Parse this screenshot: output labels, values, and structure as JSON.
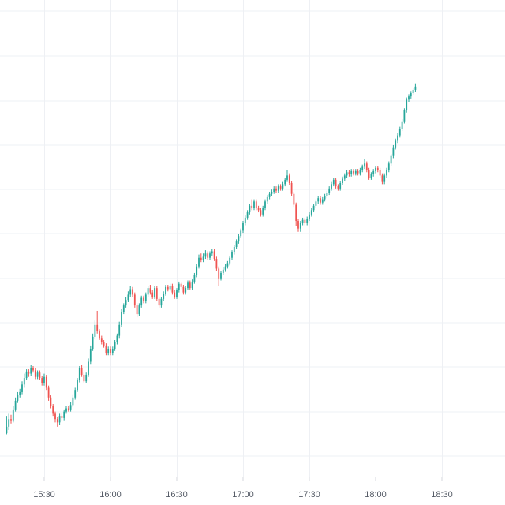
{
  "colors": {
    "background": "#ffffff",
    "grid": "#eef0f4",
    "axis_line": "#d4d7dd",
    "up": "#26a69a",
    "down": "#ef5350",
    "tick_text": "#555b66"
  },
  "chart_data": {
    "type": "candlestick",
    "interval_minutes": 1,
    "grid": true,
    "y_axis_labels_visible": false,
    "x_tick_labels": [
      "15:30",
      "16:00",
      "16:30",
      "17:00",
      "17:30",
      "18:00",
      "18:30"
    ],
    "series": [
      {
        "start_time": "15:13",
        "candles": [
          [
            96.0,
            96.6,
            97.6,
            95.9
          ],
          [
            96.6,
            97.3,
            97.8,
            96.3
          ],
          [
            97.3,
            97.2,
            97.7,
            96.9
          ],
          [
            97.2,
            98.2,
            98.5,
            97.0
          ],
          [
            98.2,
            99.0,
            99.3,
            98.0
          ],
          [
            99.0,
            99.5,
            99.8,
            98.8
          ],
          [
            99.5,
            99.8,
            100.1,
            99.3
          ],
          [
            99.8,
            100.5,
            100.8,
            99.6
          ],
          [
            100.5,
            101.1,
            101.5,
            100.2
          ],
          [
            101.1,
            101.7,
            101.9,
            100.9
          ],
          [
            101.7,
            101.5,
            101.9,
            101.2
          ],
          [
            101.5,
            102.0,
            102.3,
            101.3
          ],
          [
            102.0,
            101.8,
            102.2,
            101.6
          ],
          [
            101.8,
            101.2,
            102.0,
            101.0
          ],
          [
            101.2,
            101.6,
            101.8,
            101.0
          ],
          [
            101.6,
            101.1,
            101.8,
            100.9
          ],
          [
            101.1,
            100.6,
            101.3,
            100.4
          ],
          [
            100.6,
            101.2,
            101.5,
            100.4
          ],
          [
            101.2,
            100.2,
            101.4,
            100.0
          ],
          [
            100.2,
            99.3,
            100.4,
            99.0
          ],
          [
            99.3,
            98.5,
            99.5,
            98.3
          ],
          [
            98.5,
            97.8,
            98.7,
            97.6
          ],
          [
            97.8,
            97.3,
            98.0,
            97.0
          ],
          [
            97.3,
            97.0,
            97.5,
            96.6
          ],
          [
            97.0,
            97.6,
            97.8,
            96.8
          ],
          [
            97.6,
            97.4,
            97.9,
            97.2
          ],
          [
            97.4,
            98.0,
            98.2,
            97.2
          ],
          [
            98.0,
            98.3,
            98.5,
            97.8
          ],
          [
            98.3,
            98.2,
            98.5,
            98.0
          ],
          [
            98.2,
            98.6,
            98.9,
            98.0
          ],
          [
            98.6,
            99.3,
            99.6,
            98.4
          ],
          [
            99.3,
            100.0,
            100.2,
            99.1
          ],
          [
            100.0,
            100.9,
            101.1,
            99.8
          ],
          [
            100.9,
            102.0,
            102.2,
            100.7
          ],
          [
            102.0,
            101.4,
            102.3,
            101.2
          ],
          [
            101.4,
            100.8,
            101.6,
            100.6
          ],
          [
            100.8,
            101.4,
            101.6,
            100.6
          ],
          [
            101.4,
            102.6,
            102.9,
            101.2
          ],
          [
            102.6,
            103.8,
            104.1,
            102.4
          ],
          [
            103.8,
            104.9,
            105.2,
            103.6
          ],
          [
            104.9,
            106.0,
            106.4,
            104.7
          ],
          [
            106.0,
            105.4,
            107.3,
            105.2
          ],
          [
            105.4,
            104.8,
            105.6,
            104.6
          ],
          [
            104.8,
            104.4,
            105.0,
            104.2
          ],
          [
            104.4,
            104.1,
            104.6,
            103.9
          ],
          [
            104.1,
            103.4,
            104.3,
            103.2
          ],
          [
            103.4,
            103.8,
            104.0,
            103.2
          ],
          [
            103.8,
            103.4,
            104.0,
            103.2
          ],
          [
            103.4,
            103.8,
            104.0,
            103.2
          ],
          [
            103.8,
            104.4,
            104.6,
            103.6
          ],
          [
            104.4,
            105.0,
            105.2,
            104.2
          ],
          [
            105.0,
            106.0,
            106.3,
            104.8
          ],
          [
            106.0,
            107.2,
            107.5,
            105.8
          ],
          [
            107.2,
            107.8,
            108.0,
            107.0
          ],
          [
            107.8,
            108.3,
            108.6,
            107.6
          ],
          [
            108.3,
            108.8,
            109.1,
            108.1
          ],
          [
            108.8,
            109.3,
            109.6,
            108.6
          ],
          [
            109.3,
            108.8,
            109.5,
            108.6
          ],
          [
            108.8,
            107.8,
            109.0,
            107.6
          ],
          [
            107.8,
            107.0,
            108.0,
            106.7
          ],
          [
            107.0,
            107.8,
            108.0,
            106.8
          ],
          [
            107.8,
            108.5,
            108.7,
            107.6
          ],
          [
            108.5,
            108.2,
            108.7,
            108.0
          ],
          [
            108.2,
            108.8,
            109.0,
            108.0
          ],
          [
            108.8,
            109.4,
            109.6,
            108.6
          ],
          [
            109.4,
            109.0,
            109.7,
            108.8
          ],
          [
            109.0,
            108.6,
            109.2,
            108.4
          ],
          [
            108.6,
            109.4,
            109.6,
            108.4
          ],
          [
            109.4,
            108.4,
            109.6,
            108.2
          ],
          [
            108.4,
            107.8,
            108.6,
            107.6
          ],
          [
            107.8,
            108.4,
            108.6,
            107.6
          ],
          [
            108.4,
            108.9,
            109.1,
            108.2
          ],
          [
            108.9,
            109.5,
            109.7,
            108.7
          ],
          [
            109.5,
            109.3,
            109.7,
            109.1
          ],
          [
            109.3,
            109.6,
            109.8,
            109.1
          ],
          [
            109.6,
            109.0,
            109.8,
            108.8
          ],
          [
            109.0,
            108.6,
            109.2,
            108.4
          ],
          [
            108.6,
            109.2,
            109.4,
            108.4
          ],
          [
            109.2,
            109.8,
            110.0,
            109.0
          ],
          [
            109.8,
            109.5,
            110.0,
            109.3
          ],
          [
            109.5,
            109.0,
            109.7,
            108.8
          ],
          [
            109.0,
            109.4,
            109.6,
            108.8
          ],
          [
            109.4,
            109.9,
            110.1,
            109.2
          ],
          [
            109.9,
            109.4,
            110.1,
            109.2
          ],
          [
            109.4,
            110.0,
            110.2,
            109.2
          ],
          [
            110.0,
            110.6,
            110.8,
            109.8
          ],
          [
            110.6,
            111.4,
            111.6,
            110.4
          ],
          [
            111.4,
            112.2,
            112.5,
            111.2
          ],
          [
            112.2,
            112.0,
            112.6,
            111.8
          ],
          [
            112.0,
            112.3,
            112.6,
            111.8
          ],
          [
            112.3,
            112.6,
            112.9,
            112.1
          ],
          [
            112.6,
            112.2,
            112.8,
            112.0
          ],
          [
            112.2,
            112.6,
            112.8,
            112.0
          ],
          [
            112.6,
            112.8,
            113.0,
            112.4
          ],
          [
            112.8,
            112.1,
            113.0,
            111.9
          ],
          [
            112.1,
            111.2,
            112.3,
            111.0
          ],
          [
            111.2,
            110.3,
            111.4,
            109.6
          ],
          [
            110.3,
            110.8,
            111.0,
            110.1
          ],
          [
            110.8,
            111.1,
            111.3,
            110.6
          ],
          [
            111.1,
            111.4,
            111.6,
            110.9
          ],
          [
            111.4,
            111.7,
            111.9,
            111.2
          ],
          [
            111.7,
            112.2,
            112.4,
            111.5
          ],
          [
            112.2,
            112.7,
            112.9,
            112.0
          ],
          [
            112.7,
            113.2,
            113.4,
            112.5
          ],
          [
            113.2,
            113.7,
            113.9,
            113.0
          ],
          [
            113.7,
            114.2,
            114.4,
            113.5
          ],
          [
            114.2,
            114.7,
            114.9,
            114.0
          ],
          [
            114.7,
            115.4,
            115.6,
            114.5
          ],
          [
            115.4,
            115.9,
            116.1,
            115.2
          ],
          [
            115.9,
            116.4,
            116.6,
            115.7
          ],
          [
            116.4,
            117.0,
            117.2,
            116.2
          ],
          [
            117.0,
            116.8,
            117.6,
            116.6
          ],
          [
            116.8,
            117.4,
            117.6,
            116.6
          ],
          [
            117.4,
            116.8,
            117.6,
            116.6
          ],
          [
            116.8,
            116.6,
            117.0,
            116.4
          ],
          [
            116.6,
            116.2,
            116.8,
            116.0
          ],
          [
            116.2,
            116.8,
            117.0,
            116.0
          ],
          [
            116.8,
            117.4,
            117.6,
            116.6
          ],
          [
            117.4,
            117.8,
            118.0,
            117.2
          ],
          [
            117.8,
            118.1,
            118.3,
            117.6
          ],
          [
            118.1,
            118.3,
            118.5,
            117.9
          ],
          [
            118.3,
            118.6,
            118.8,
            118.1
          ],
          [
            118.6,
            118.4,
            118.8,
            118.2
          ],
          [
            118.4,
            118.8,
            119.0,
            118.2
          ],
          [
            118.8,
            118.6,
            119.0,
            118.4
          ],
          [
            118.6,
            119.0,
            119.2,
            118.4
          ],
          [
            119.0,
            119.4,
            119.6,
            118.8
          ],
          [
            119.4,
            119.8,
            120.3,
            119.2
          ],
          [
            119.8,
            119.1,
            120.0,
            118.9
          ],
          [
            119.1,
            118.1,
            119.3,
            117.9
          ],
          [
            118.1,
            117.1,
            118.3,
            116.9
          ],
          [
            117.1,
            115.6,
            117.3,
            115.1
          ],
          [
            115.6,
            114.9,
            115.8,
            114.6
          ],
          [
            114.9,
            115.4,
            115.6,
            114.6
          ],
          [
            115.4,
            115.7,
            115.9,
            115.2
          ],
          [
            115.7,
            115.4,
            115.9,
            115.2
          ],
          [
            115.4,
            115.8,
            116.0,
            115.2
          ],
          [
            115.8,
            116.2,
            116.4,
            115.6
          ],
          [
            116.2,
            116.6,
            116.8,
            116.0
          ],
          [
            116.6,
            117.0,
            117.2,
            116.4
          ],
          [
            117.0,
            117.4,
            117.6,
            116.8
          ],
          [
            117.4,
            117.7,
            117.9,
            117.2
          ],
          [
            117.7,
            117.3,
            117.9,
            117.1
          ],
          [
            117.3,
            117.6,
            117.8,
            117.1
          ],
          [
            117.6,
            117.9,
            118.1,
            117.4
          ],
          [
            117.9,
            118.2,
            118.4,
            117.7
          ],
          [
            118.2,
            118.6,
            118.8,
            118.0
          ],
          [
            118.6,
            119.0,
            119.2,
            118.4
          ],
          [
            119.0,
            119.4,
            119.6,
            118.8
          ],
          [
            119.4,
            118.8,
            119.6,
            118.6
          ],
          [
            118.8,
            118.6,
            119.0,
            118.4
          ],
          [
            118.6,
            119.1,
            119.3,
            118.4
          ],
          [
            119.1,
            119.5,
            119.7,
            118.9
          ],
          [
            119.5,
            119.8,
            120.0,
            119.3
          ],
          [
            119.8,
            120.1,
            120.3,
            119.6
          ],
          [
            120.1,
            119.9,
            120.3,
            119.7
          ],
          [
            119.9,
            120.2,
            120.4,
            119.7
          ],
          [
            120.2,
            120.0,
            120.4,
            119.8
          ],
          [
            120.0,
            120.2,
            120.4,
            119.8
          ],
          [
            120.2,
            120.0,
            120.4,
            119.8
          ],
          [
            120.0,
            120.3,
            120.5,
            119.8
          ],
          [
            120.3,
            120.6,
            120.8,
            120.1
          ],
          [
            120.6,
            120.9,
            121.3,
            120.4
          ],
          [
            120.9,
            120.3,
            121.1,
            120.1
          ],
          [
            120.3,
            119.6,
            120.5,
            119.4
          ],
          [
            119.6,
            119.9,
            120.1,
            119.4
          ],
          [
            119.9,
            120.2,
            120.4,
            119.7
          ],
          [
            120.2,
            120.5,
            120.7,
            120.0
          ],
          [
            120.5,
            120.3,
            120.7,
            120.1
          ],
          [
            120.3,
            119.8,
            120.5,
            119.6
          ],
          [
            119.8,
            119.2,
            120.0,
            119.0
          ],
          [
            119.2,
            119.8,
            120.0,
            119.0
          ],
          [
            119.8,
            120.3,
            120.5,
            119.6
          ],
          [
            120.3,
            120.9,
            121.1,
            120.1
          ],
          [
            120.9,
            121.6,
            121.8,
            120.7
          ],
          [
            121.6,
            122.4,
            122.6,
            121.4
          ],
          [
            122.4,
            123.0,
            123.2,
            122.2
          ],
          [
            123.0,
            123.5,
            123.7,
            122.8
          ],
          [
            123.5,
            124.1,
            124.3,
            123.3
          ],
          [
            124.1,
            124.8,
            125.0,
            123.9
          ],
          [
            124.8,
            125.8,
            126.0,
            124.6
          ],
          [
            125.8,
            126.8,
            127.0,
            125.6
          ],
          [
            126.8,
            127.1,
            127.3,
            126.6
          ],
          [
            127.1,
            127.4,
            127.6,
            126.9
          ],
          [
            127.4,
            127.7,
            127.9,
            127.2
          ],
          [
            127.7,
            128.0,
            128.3,
            127.5
          ]
        ]
      }
    ],
    "candle_fields": [
      "open",
      "close",
      "high",
      "low"
    ],
    "y_range": [
      92,
      136
    ],
    "x_range_minutes": [
      15.0,
      18.75
    ]
  }
}
